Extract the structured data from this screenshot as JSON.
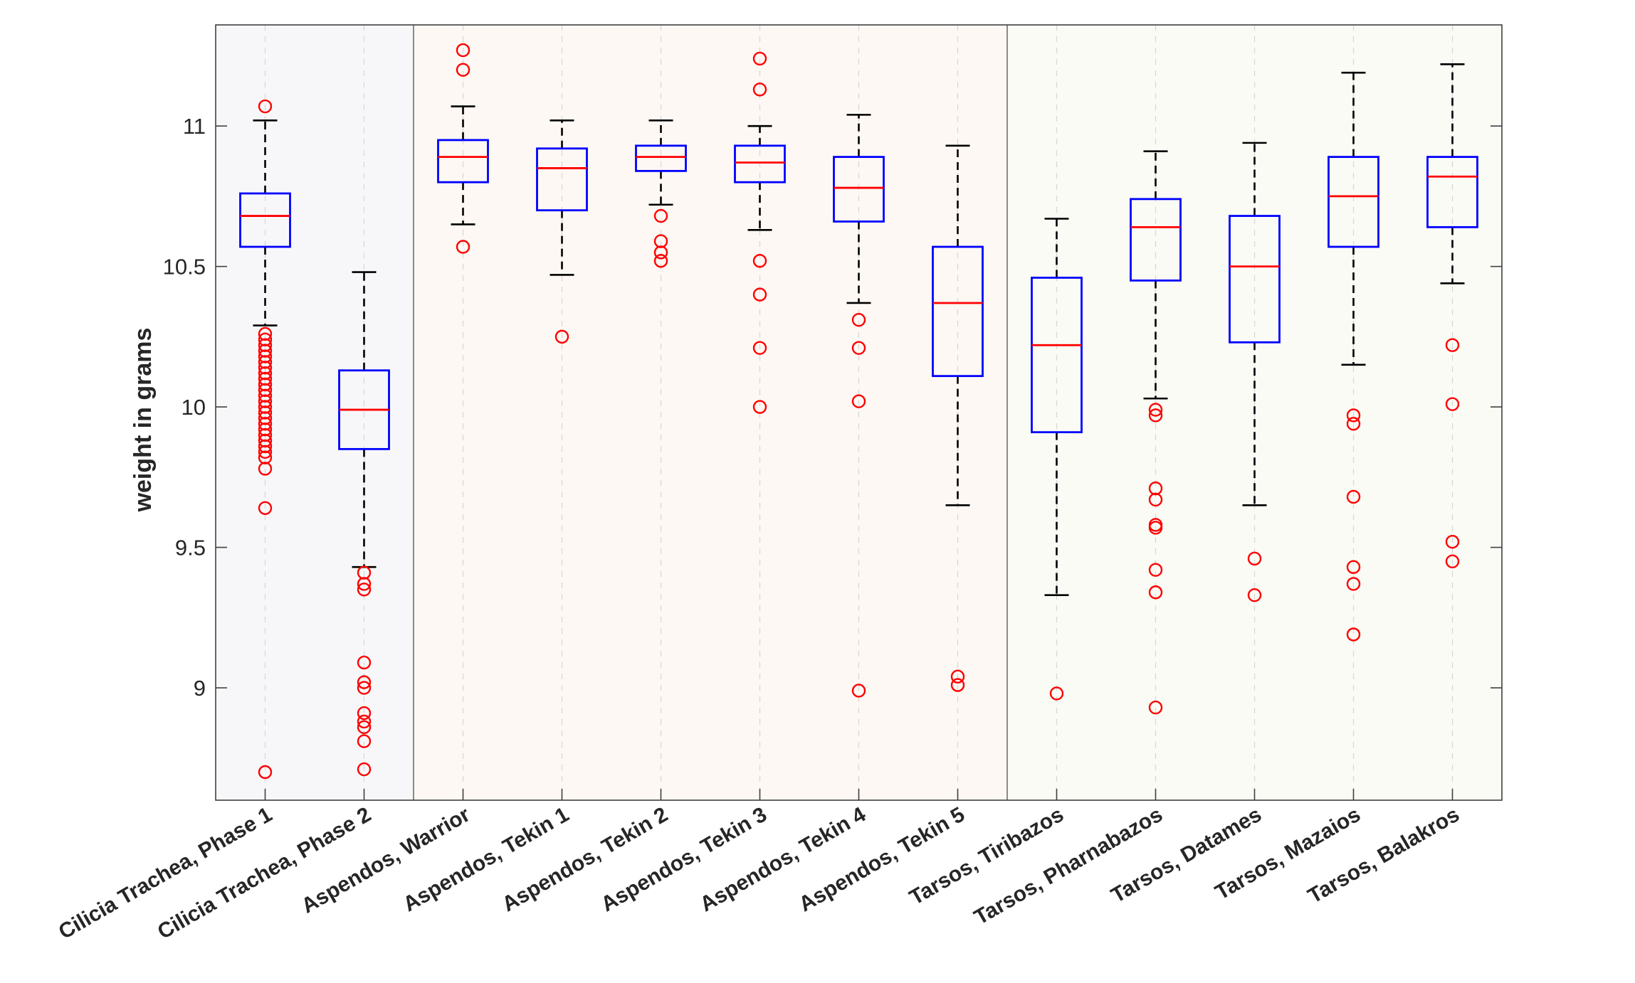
{
  "chart_data": {
    "type": "box",
    "title": "",
    "xlabel": "",
    "ylabel": "weight in grams",
    "ylim": [
      8.6,
      11.36
    ],
    "yticks": [
      9,
      9.5,
      10,
      10.5,
      11
    ],
    "ytick_labels": [
      "9",
      "9.5",
      "10",
      "10.5",
      "11"
    ],
    "grid": "vertical dashed at categories, horizontal tick marks only",
    "colors": {
      "box": "#0000ff",
      "median": "#ff0000",
      "whisker": "#000000",
      "outlier": "#ff0000",
      "axis": "#404040"
    },
    "groups": [
      {
        "name": "Cilicia Trachea",
        "from": 0,
        "to": 1,
        "color": "#f7f7f9"
      },
      {
        "name": "Aspendos",
        "from": 2,
        "to": 7,
        "color": "#fdf8f3"
      },
      {
        "name": "Tarsos",
        "from": 8,
        "to": 12,
        "color": "#f9fbf4"
      }
    ],
    "categories": [
      "Cilicia Trachea, Phase 1",
      "Cilicia Trachea, Phase 2",
      "Aspendos, Warrior",
      "Aspendos, Tekin 1",
      "Aspendos, Tekin 2",
      "Aspendos, Tekin 3",
      "Aspendos, Tekin 4",
      "Aspendos, Tekin 5",
      "Tarsos, Tiribazos",
      "Tarsos, Pharnabazos",
      "Tarsos, Datames",
      "Tarsos, Mazaios",
      "Tarsos, Balakros"
    ],
    "boxes": [
      {
        "whisker_low": 10.29,
        "q1": 10.57,
        "median": 10.68,
        "q3": 10.76,
        "whisker_high": 11.02,
        "outliers": [
          11.07,
          10.26,
          10.24,
          10.22,
          10.2,
          10.18,
          10.16,
          10.14,
          10.12,
          10.1,
          10.08,
          10.06,
          10.04,
          10.02,
          10.0,
          9.98,
          9.96,
          9.94,
          9.92,
          9.9,
          9.88,
          9.86,
          9.84,
          9.82,
          9.78,
          9.64,
          8.7
        ]
      },
      {
        "whisker_low": 9.43,
        "q1": 9.85,
        "median": 9.99,
        "q3": 10.13,
        "whisker_high": 10.48,
        "outliers": [
          9.41,
          9.37,
          9.35,
          9.09,
          9.02,
          9.0,
          8.91,
          8.88,
          8.86,
          8.81,
          8.71
        ]
      },
      {
        "whisker_low": 10.65,
        "q1": 10.8,
        "median": 10.89,
        "q3": 10.95,
        "whisker_high": 11.07,
        "outliers": [
          11.27,
          11.2,
          10.57
        ]
      },
      {
        "whisker_low": 10.47,
        "q1": 10.7,
        "median": 10.85,
        "q3": 10.92,
        "whisker_high": 11.02,
        "outliers": [
          10.25
        ]
      },
      {
        "whisker_low": 10.72,
        "q1": 10.84,
        "median": 10.89,
        "q3": 10.93,
        "whisker_high": 11.02,
        "outliers": [
          10.68,
          10.59,
          10.55,
          10.52
        ]
      },
      {
        "whisker_low": 10.63,
        "q1": 10.8,
        "median": 10.87,
        "q3": 10.93,
        "whisker_high": 11.0,
        "outliers": [
          11.24,
          11.13,
          10.52,
          10.4,
          10.21,
          10.0
        ]
      },
      {
        "whisker_low": 10.37,
        "q1": 10.66,
        "median": 10.78,
        "q3": 10.89,
        "whisker_high": 11.04,
        "outliers": [
          10.31,
          10.21,
          10.02,
          8.99
        ]
      },
      {
        "whisker_low": 9.65,
        "q1": 10.11,
        "median": 10.37,
        "q3": 10.57,
        "whisker_high": 10.93,
        "outliers": [
          9.04,
          9.01
        ]
      },
      {
        "whisker_low": 9.33,
        "q1": 9.91,
        "median": 10.22,
        "q3": 10.46,
        "whisker_high": 10.67,
        "outliers": [
          8.98
        ]
      },
      {
        "whisker_low": 10.03,
        "q1": 10.45,
        "median": 10.64,
        "q3": 10.74,
        "whisker_high": 10.91,
        "outliers": [
          9.99,
          9.97,
          9.71,
          9.67,
          9.58,
          9.57,
          9.42,
          9.34,
          8.93
        ]
      },
      {
        "whisker_low": 9.65,
        "q1": 10.23,
        "median": 10.5,
        "q3": 10.68,
        "whisker_high": 10.94,
        "outliers": [
          9.46,
          9.33
        ]
      },
      {
        "whisker_low": 10.15,
        "q1": 10.57,
        "median": 10.75,
        "q3": 10.89,
        "whisker_high": 11.19,
        "outliers": [
          9.97,
          9.94,
          9.68,
          9.43,
          9.37,
          9.19
        ]
      },
      {
        "whisker_low": 10.44,
        "q1": 10.64,
        "median": 10.82,
        "q3": 10.89,
        "whisker_high": 11.22,
        "outliers": [
          10.22,
          10.01,
          9.52,
          9.45
        ]
      }
    ]
  }
}
